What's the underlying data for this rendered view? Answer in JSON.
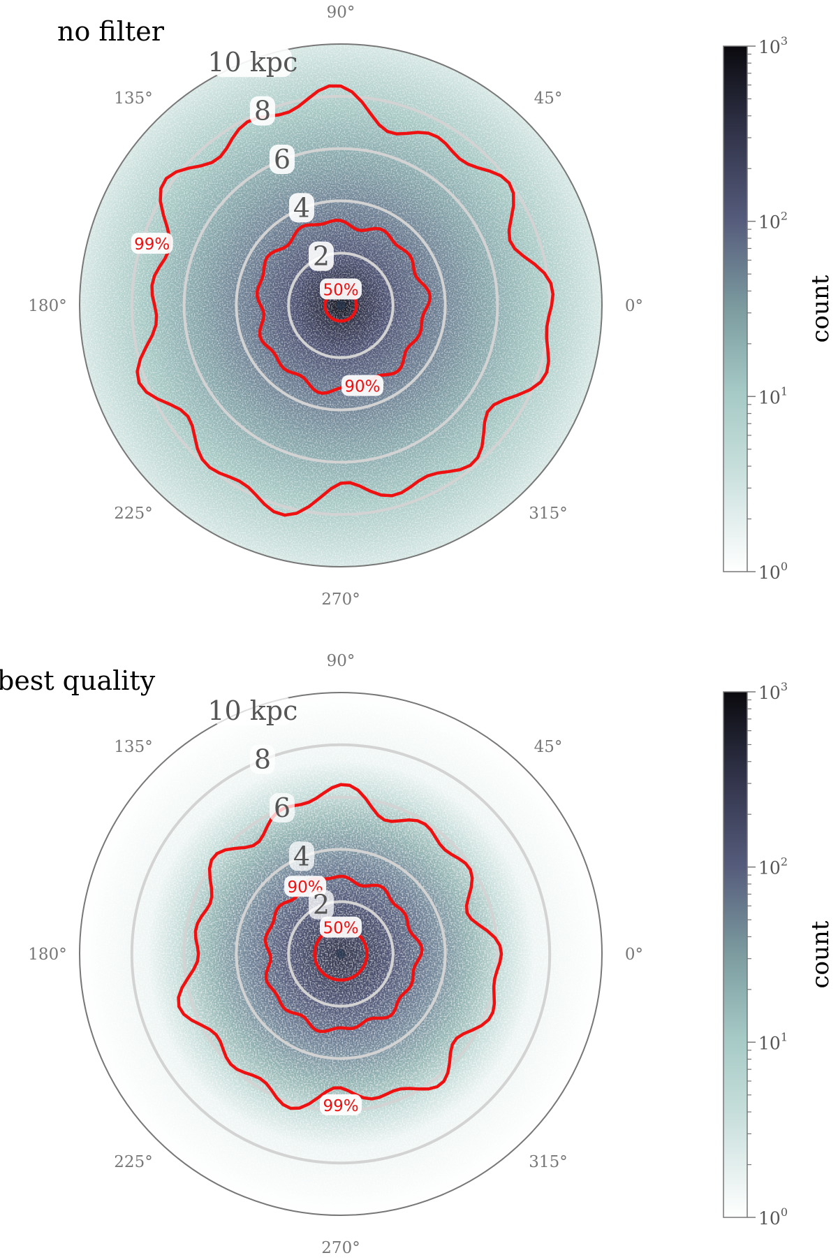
{
  "chart_data": [
    {
      "type": "heatmap",
      "projection": "polar",
      "title": "no filter",
      "angle_ticks": [
        "0°",
        "45°",
        "90°",
        "135°",
        "180°",
        "225°",
        "270°",
        "315°"
      ],
      "radial_ticks": [
        "2",
        "4",
        "6",
        "8",
        "10 kpc"
      ],
      "radial_values": [
        2,
        4,
        6,
        8,
        10
      ],
      "rlim": [
        0,
        10
      ],
      "contours": [
        {
          "label": "50%",
          "radius": 0.6
        },
        {
          "label": "90%",
          "radius": 3.2
        },
        {
          "label": "99%",
          "radius": 7.6
        }
      ],
      "colorbar": {
        "label": "count",
        "scale": "log",
        "range": [
          1,
          1000
        ],
        "ticks": [
          {
            "base": "10",
            "exp": "0"
          },
          {
            "base": "10",
            "exp": "1"
          },
          {
            "base": "10",
            "exp": "2"
          },
          {
            "base": "10",
            "exp": "3"
          }
        ]
      },
      "colormap": [
        "#ffffff",
        "#a6cac6",
        "#6b8890",
        "#555b7b",
        "#0a0a0e"
      ]
    },
    {
      "type": "heatmap",
      "projection": "polar",
      "title": "best quality",
      "angle_ticks": [
        "0°",
        "45°",
        "90°",
        "135°",
        "180°",
        "225°",
        "270°",
        "315°"
      ],
      "radial_ticks": [
        "2",
        "4",
        "6",
        "8",
        "10 kpc"
      ],
      "radial_values": [
        2,
        4,
        6,
        8,
        10
      ],
      "rlim": [
        0,
        10
      ],
      "contours": [
        {
          "label": "50%",
          "radius": 1.0
        },
        {
          "label": "90%",
          "radius": 2.9
        },
        {
          "label": "99%",
          "radius": 5.8
        }
      ],
      "colorbar": {
        "label": "count",
        "scale": "log",
        "range": [
          1,
          1000
        ],
        "ticks": [
          {
            "base": "10",
            "exp": "0"
          },
          {
            "base": "10",
            "exp": "1"
          },
          {
            "base": "10",
            "exp": "2"
          },
          {
            "base": "10",
            "exp": "3"
          }
        ]
      },
      "colormap": [
        "#ffffff",
        "#a6cac6",
        "#6b8890",
        "#555b7b",
        "#0a0a0e"
      ]
    }
  ]
}
